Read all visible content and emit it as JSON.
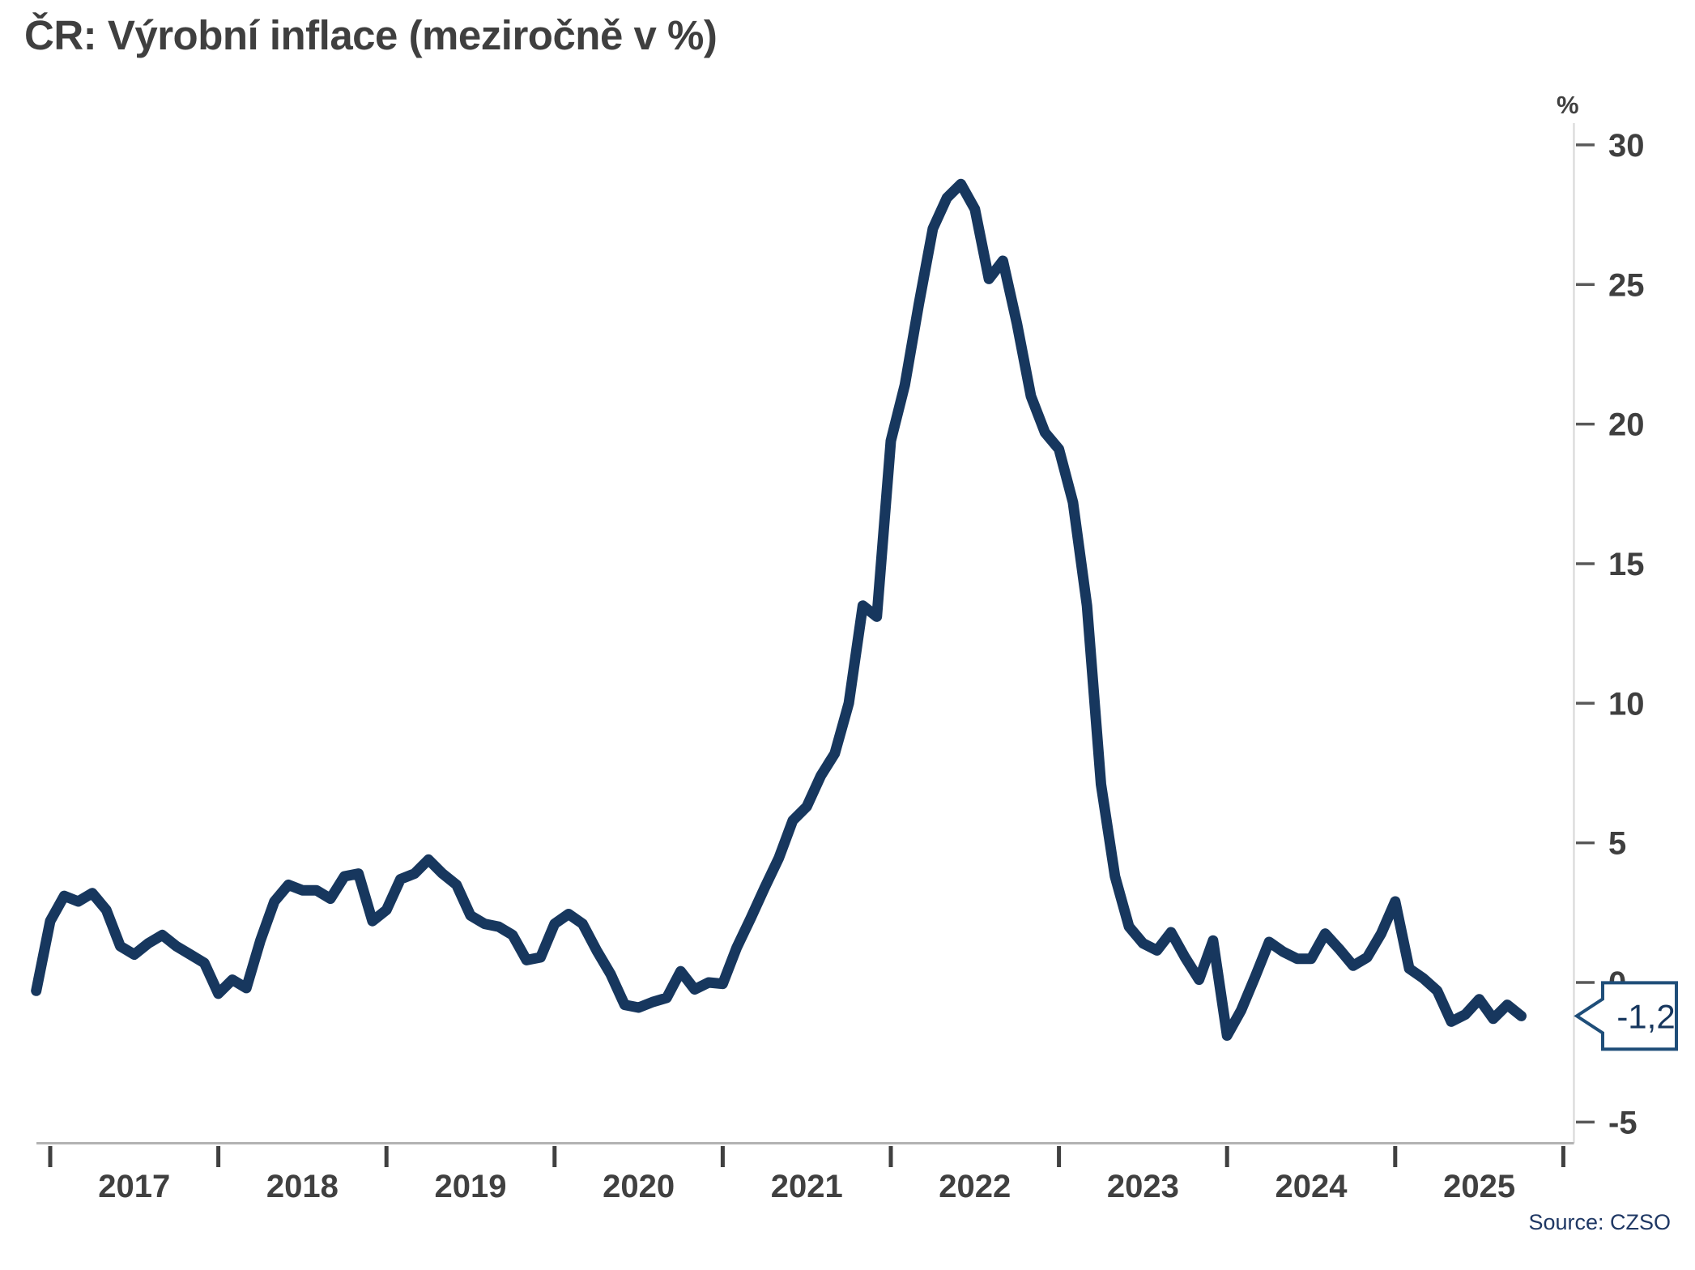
{
  "page": {
    "title": "ČR: Výrobní inflace (meziročně v %)",
    "source": "Source: CZSO"
  },
  "chart_data": {
    "type": "line",
    "title": "ČR: Výrobní inflace (meziročně v %)",
    "unit_label": "%",
    "frequency": "monthly",
    "start_month": "2016-12",
    "end_month": "2025-10",
    "x_tick_years": [
      "2017",
      "2018",
      "2019",
      "2020",
      "2021",
      "2022",
      "2023",
      "2024",
      "2025"
    ],
    "y_ticks": [
      30,
      25,
      20,
      15,
      10,
      5,
      0,
      -5
    ],
    "ylim": [
      -5.8,
      30.8
    ],
    "grid": "off",
    "legend": "none",
    "line_color": "#17375E",
    "callout_color": "#1F4E79",
    "axis_label_color": "#404040",
    "axis_line_color": "#b3b3b3",
    "last_value_label": "-1,2",
    "last_value": -1.2,
    "series": [
      {
        "name": "Výrobní inflace (PPI, meziročně v %)",
        "values": [
          -0.3,
          2.2,
          3.1,
          2.9,
          3.2,
          2.6,
          1.3,
          1.0,
          1.4,
          1.7,
          1.3,
          1.0,
          0.7,
          -0.4,
          0.1,
          -0.2,
          1.5,
          2.9,
          3.5,
          3.3,
          3.3,
          3.0,
          3.8,
          3.9,
          2.2,
          2.6,
          3.7,
          3.9,
          4.4,
          3.9,
          3.5,
          2.4,
          2.1,
          2.0,
          1.7,
          0.8,
          0.9,
          2.1,
          2.45,
          2.1,
          1.15,
          0.3,
          -0.8,
          -0.9,
          -0.7,
          -0.55,
          0.4,
          -0.25,
          0.0,
          -0.05,
          1.25,
          2.3,
          3.4,
          4.45,
          5.8,
          6.3,
          7.4,
          8.2,
          10.0,
          13.5,
          13.1,
          19.4,
          21.4,
          24.3,
          27.0,
          28.1,
          28.6,
          27.7,
          25.2,
          25.85,
          23.6,
          21.0,
          19.7,
          19.1,
          17.2,
          13.5,
          7.1,
          3.8,
          2.0,
          1.4,
          1.15,
          1.8,
          0.9,
          0.1,
          1.5,
          -1.9,
          -1.0,
          0.2,
          1.45,
          1.1,
          0.85,
          0.85,
          1.75,
          1.2,
          0.6,
          0.9,
          1.75,
          2.9,
          0.5,
          0.15,
          -0.3,
          -1.4,
          -1.15,
          -0.6,
          -1.3,
          -0.8,
          -1.2
        ]
      }
    ]
  }
}
